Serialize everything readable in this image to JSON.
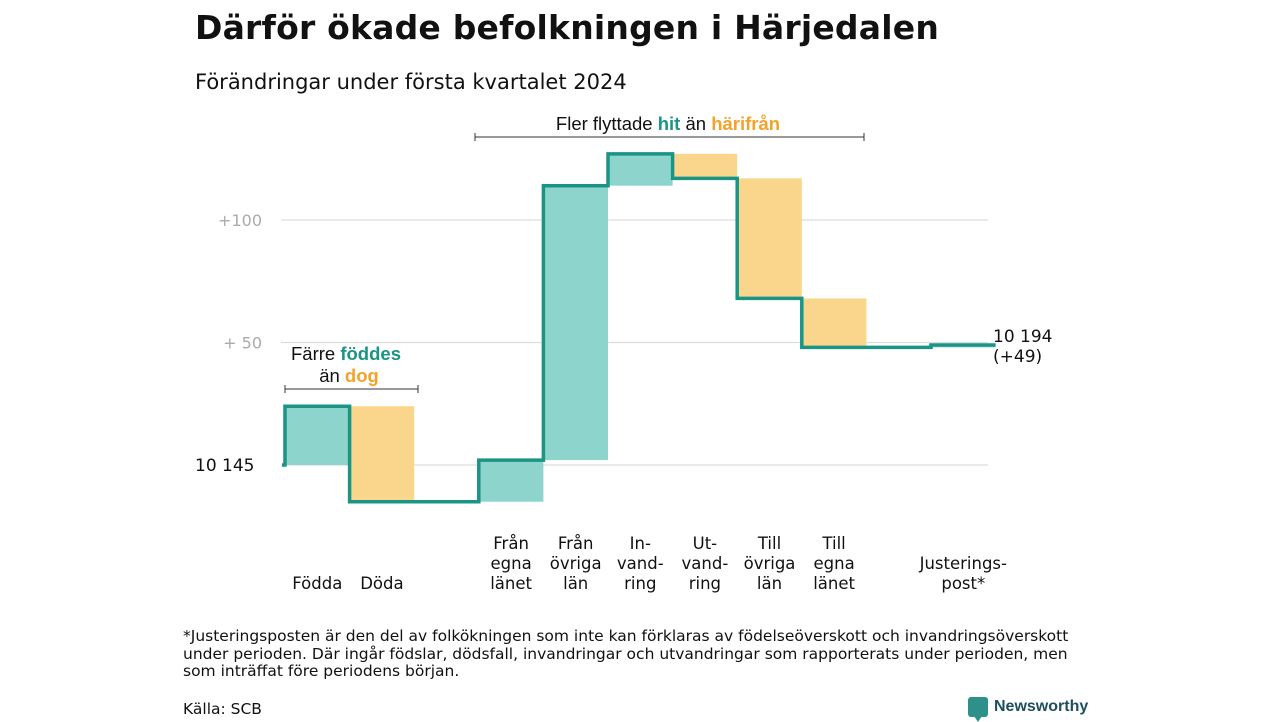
{
  "title": "Därför ökade befolkningen i Härjedalen",
  "subtitle": "Förändringar under första kvartalet 2024",
  "footnote": "*Justeringsposten är den del av folkökningen som inte kan förklaras av födelseöverskott och invandringsöverskott under perioden. Där ingår födslar, dödsfall, invandringar och utvandringar som rapporterats under perioden, men som inträffat före periodens början.",
  "source": "Källa: SCB",
  "brand": "Newsworthy",
  "colors": {
    "increase": "#8dd5cc",
    "decrease": "#fad58c",
    "step_line": "#1a9484",
    "hit": "#1a9484",
    "harifran": "#f4a22a",
    "grid": "#dddddd",
    "text": "#111111",
    "tick": "#aaaaaa"
  },
  "chart_data": {
    "type": "waterfall",
    "start_value": 10145,
    "start_label": "10  145",
    "end_value": 10194,
    "end_label": "10 194",
    "end_change_label": "(+49)",
    "yticks": [
      {
        "value": 10245,
        "label": "+100"
      },
      {
        "value": 10195,
        "label": "+  50"
      }
    ],
    "ylim": [
      10127,
      10273
    ],
    "grid": true,
    "steps": [
      {
        "label": [
          "Födda"
        ],
        "change": 24
      },
      {
        "label": [
          "Döda"
        ],
        "change": -39
      },
      {
        "label": [
          ""
        ],
        "change": 0
      },
      {
        "label": [
          "Från",
          "egna",
          "länet"
        ],
        "change": 17
      },
      {
        "label": [
          "Från",
          "övriga",
          "län"
        ],
        "change": 112
      },
      {
        "label": [
          "In-",
          "vand-",
          "ring"
        ],
        "change": 13
      },
      {
        "label": [
          "Ut-",
          "vand-",
          "ring"
        ],
        "change": -10
      },
      {
        "label": [
          "Till",
          "övriga",
          "län"
        ],
        "change": -49
      },
      {
        "label": [
          "Till",
          "egna",
          "länet"
        ],
        "change": -20
      },
      {
        "label": [
          ""
        ],
        "change": 0
      },
      {
        "label": [
          "Justerings-",
          "post*"
        ],
        "change": 1
      }
    ],
    "annotations": [
      {
        "text_parts": [
          "Färre ",
          "föddes",
          "än ",
          "dog"
        ]
      },
      {
        "text_parts": [
          "Fler flyttade ",
          "hit",
          " än ",
          "härifrån"
        ]
      }
    ]
  }
}
